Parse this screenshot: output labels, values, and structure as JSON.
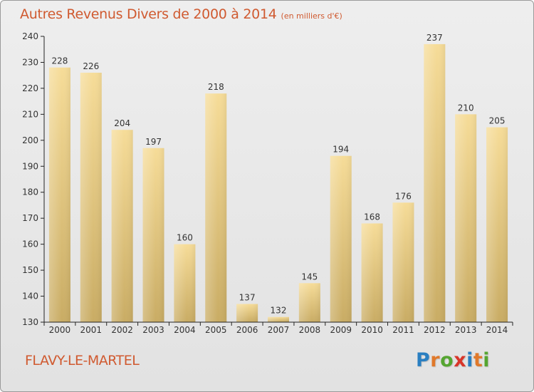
{
  "header": {
    "title": "Autres Revenus Divers de 2000 à 2014",
    "subtitle": "(en milliers d'€)"
  },
  "footer": {
    "commune": "FLAVY-LE-MARTEL",
    "logo": {
      "text": "Proxiti",
      "letters": [
        {
          "char": "P",
          "color": "#2a7fc1"
        },
        {
          "char": "r",
          "color": "#e0792b"
        },
        {
          "char": "o",
          "color": "#55a531"
        },
        {
          "char": "x",
          "color": "#d8362a"
        },
        {
          "char": "i",
          "color": "#2a7fc1"
        },
        {
          "char": "t",
          "color": "#e0792b"
        },
        {
          "char": "i",
          "color": "#55a531"
        }
      ]
    }
  },
  "colors": {
    "bar_light": "#f6dc98",
    "bar_dark": "#c9ac64",
    "label": "#333333",
    "axis": "#222222"
  },
  "chart_data": {
    "type": "bar",
    "title": "Autres Revenus Divers de 2000 à 2014",
    "subtitle": "(en milliers d'€)",
    "xlabel": "",
    "ylabel": "",
    "categories": [
      "2000",
      "2001",
      "2002",
      "2003",
      "2004",
      "2005",
      "2006",
      "2007",
      "2008",
      "2009",
      "2010",
      "2011",
      "2012",
      "2013",
      "2014"
    ],
    "values": [
      228,
      226,
      204,
      197,
      160,
      218,
      137,
      132,
      145,
      194,
      168,
      176,
      237,
      210,
      205
    ],
    "ylim": [
      130,
      240
    ],
    "yticks": [
      130,
      140,
      150,
      160,
      170,
      180,
      190,
      200,
      210,
      220,
      230,
      240
    ],
    "grid": false,
    "legend": "none",
    "data_labels": true
  }
}
